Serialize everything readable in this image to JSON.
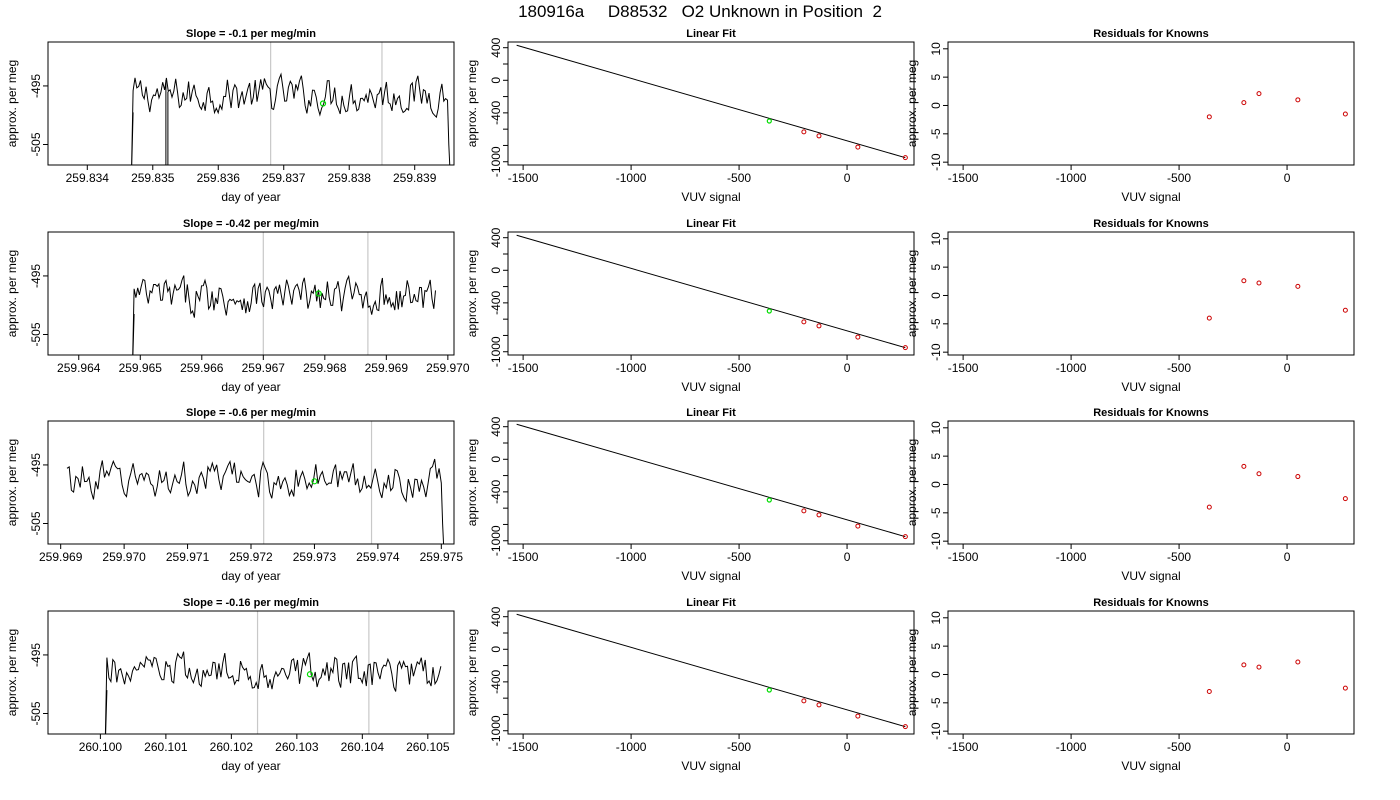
{
  "page_title": "180916a     D88532   O2 Unknown in Position  2",
  "colors": {
    "series": "#000000",
    "marker_unknown": "#00dd00",
    "marker_known": "#cc0000",
    "vline": "#c8c8c8"
  },
  "chart_data": [
    {
      "id": "r1c1",
      "type": "line",
      "title": "Slope =  -0.1  per meg/min",
      "xlabel": "day of year",
      "ylabel": "approx. per meg",
      "xlim": [
        259.8334,
        259.8396
      ],
      "ylim": [
        -508.5,
        -487.5
      ],
      "xticks": [
        259.834,
        259.835,
        259.836,
        259.837,
        259.838,
        259.839
      ],
      "xtick_labels": [
        "259.834",
        "259.835",
        "259.836",
        "259.837",
        "259.838",
        "259.839"
      ],
      "yticks": [
        -505,
        -495
      ],
      "ytick_labels": [
        "-505",
        "-495"
      ],
      "vlines": [
        259.8368,
        259.8385
      ],
      "trace_start": 259.8347,
      "trace_end": 259.8395,
      "trace_level": -496.5,
      "start_drop": true,
      "end_drop": true,
      "dip_at": 259.8352,
      "marker": {
        "x": 259.8376,
        "y": -498.0
      }
    },
    {
      "id": "r1c2",
      "type": "scatter",
      "title": "Linear Fit",
      "xlabel": "VUV signal",
      "ylabel": "approx. per meg",
      "xlim": [
        -1570,
        310
      ],
      "ylim": [
        -1040,
        470
      ],
      "xticks": [
        -1500,
        -1000,
        -500,
        0
      ],
      "xtick_labels": [
        "-1500",
        "-1000",
        "-500",
        "0"
      ],
      "yticks": [
        -1000,
        -800,
        -600,
        -400,
        -200,
        0,
        200,
        400
      ],
      "ytick_labels": [
        "-1000",
        "",
        "",
        "-400",
        "",
        "0",
        "",
        "400"
      ],
      "line": {
        "x": [
          -1530,
          270
        ],
        "y": [
          430,
          -950
        ]
      },
      "knowns": {
        "x": [
          -200,
          -130,
          50,
          270
        ],
        "y": [
          -633,
          -683,
          -820,
          -950
        ]
      },
      "unknown": {
        "x": [
          -360
        ],
        "y": [
          -500
        ]
      }
    },
    {
      "id": "r1c3",
      "type": "scatter",
      "title": "Residuals for Knowns",
      "xlabel": "VUV signal",
      "ylabel": "approx. per meg",
      "xlim": [
        -1570,
        310
      ],
      "ylim": [
        -10.5,
        11.2
      ],
      "xticks": [
        -1500,
        -1000,
        -500,
        0
      ],
      "xtick_labels": [
        "-1500",
        "-1000",
        "-500",
        "0"
      ],
      "yticks": [
        -10,
        -5,
        0,
        5,
        10
      ],
      "ytick_labels": [
        "-10",
        "-5",
        "0",
        "5",
        "10"
      ],
      "knowns": {
        "x": [
          -360,
          -200,
          -130,
          50,
          270
        ],
        "y": [
          -2.0,
          0.5,
          2.1,
          1.0,
          -1.5
        ]
      }
    },
    {
      "id": "r2c1",
      "type": "line",
      "title": "Slope =  -0.42  per meg/min",
      "xlabel": "day of year",
      "ylabel": "approx. per meg",
      "xlim": [
        259.9635,
        259.9701
      ],
      "ylim": [
        -508.5,
        -487.5
      ],
      "xticks": [
        259.964,
        259.965,
        259.966,
        259.967,
        259.968,
        259.969,
        259.97
      ],
      "xtick_labels": [
        "259.964",
        "259.965",
        "259.966",
        "259.967",
        "259.968",
        "259.969",
        "259.970"
      ],
      "yticks": [
        -505,
        -495
      ],
      "ytick_labels": [
        "-505",
        "-495"
      ],
      "vlines": [
        259.967,
        259.9687
      ],
      "trace_start": 259.9649,
      "trace_end": 259.9698,
      "trace_level": -498.5,
      "start_drop": true,
      "end_drop": false,
      "dip_at": null,
      "marker": {
        "x": 259.9679,
        "y": -498.0
      }
    },
    {
      "id": "r2c2",
      "type": "scatter",
      "title": "Linear Fit",
      "xlabel": "VUV signal",
      "ylabel": "approx. per meg",
      "xlim": [
        -1570,
        310
      ],
      "ylim": [
        -1040,
        470
      ],
      "xticks": [
        -1500,
        -1000,
        -500,
        0
      ],
      "xtick_labels": [
        "-1500",
        "-1000",
        "-500",
        "0"
      ],
      "yticks": [
        -1000,
        -800,
        -600,
        -400,
        -200,
        0,
        200,
        400
      ],
      "ytick_labels": [
        "-1000",
        "",
        "",
        "-400",
        "",
        "0",
        "",
        "400"
      ],
      "line": {
        "x": [
          -1530,
          270
        ],
        "y": [
          430,
          -950
        ]
      },
      "knowns": {
        "x": [
          -200,
          -130,
          50,
          270
        ],
        "y": [
          -633,
          -683,
          -820,
          -950
        ]
      },
      "unknown": {
        "x": [
          -360
        ],
        "y": [
          -500
        ]
      }
    },
    {
      "id": "r2c3",
      "type": "scatter",
      "title": "Residuals for Knowns",
      "xlabel": "VUV signal",
      "ylabel": "approx. per meg",
      "xlim": [
        -1570,
        310
      ],
      "ylim": [
        -10.5,
        11.2
      ],
      "xticks": [
        -1500,
        -1000,
        -500,
        0
      ],
      "xtick_labels": [
        "-1500",
        "-1000",
        "-500",
        "0"
      ],
      "yticks": [
        -10,
        -5,
        0,
        5,
        10
      ],
      "ytick_labels": [
        "-10",
        "-5",
        "0",
        "5",
        "10"
      ],
      "knowns": {
        "x": [
          -360,
          -200,
          -130,
          50,
          270
        ],
        "y": [
          -4.0,
          2.6,
          2.2,
          1.6,
          -2.6
        ]
      }
    },
    {
      "id": "r3c1",
      "type": "line",
      "title": "Slope =  -0.6  per meg/min",
      "xlabel": "day of year",
      "ylabel": "approx. per meg",
      "xlim": [
        259.9688,
        259.9752
      ],
      "ylim": [
        -508.5,
        -487.5
      ],
      "xticks": [
        259.969,
        259.97,
        259.971,
        259.972,
        259.973,
        259.974,
        259.975
      ],
      "xtick_labels": [
        "259.969",
        "259.970",
        "259.971",
        "259.972",
        "259.973",
        "259.974",
        "259.975"
      ],
      "yticks": [
        -505,
        -495
      ],
      "ytick_labels": [
        "-505",
        "-495"
      ],
      "vlines": [
        259.9722,
        259.9739
      ],
      "trace_start": 259.9691,
      "trace_end": 259.975,
      "trace_level": -497.5,
      "start_drop": false,
      "end_drop": true,
      "dip_at": null,
      "marker": {
        "x": 259.973,
        "y": -497.8
      }
    },
    {
      "id": "r3c2",
      "type": "scatter",
      "title": "Linear Fit",
      "xlabel": "VUV signal",
      "ylabel": "approx. per meg",
      "xlim": [
        -1570,
        310
      ],
      "ylim": [
        -1040,
        470
      ],
      "xticks": [
        -1500,
        -1000,
        -500,
        0
      ],
      "xtick_labels": [
        "-1500",
        "-1000",
        "-500",
        "0"
      ],
      "yticks": [
        -1000,
        -800,
        -600,
        -400,
        -200,
        0,
        200,
        400
      ],
      "ytick_labels": [
        "-1000",
        "",
        "",
        "-400",
        "",
        "0",
        "",
        "400"
      ],
      "line": {
        "x": [
          -1530,
          270
        ],
        "y": [
          430,
          -950
        ]
      },
      "knowns": {
        "x": [
          -200,
          -130,
          50,
          270
        ],
        "y": [
          -633,
          -683,
          -820,
          -950
        ]
      },
      "unknown": {
        "x": [
          -360
        ],
        "y": [
          -500
        ]
      }
    },
    {
      "id": "r3c3",
      "type": "scatter",
      "title": "Residuals for Knowns",
      "xlabel": "VUV signal",
      "ylabel": "approx. per meg",
      "xlim": [
        -1570,
        310
      ],
      "ylim": [
        -10.5,
        11.2
      ],
      "xticks": [
        -1500,
        -1000,
        -500,
        0
      ],
      "xtick_labels": [
        "-1500",
        "-1000",
        "-500",
        "0"
      ],
      "yticks": [
        -10,
        -5,
        0,
        5,
        10
      ],
      "ytick_labels": [
        "-10",
        "-5",
        "0",
        "5",
        "10"
      ],
      "knowns": {
        "x": [
          -360,
          -200,
          -130,
          50,
          270
        ],
        "y": [
          -4.0,
          3.2,
          1.9,
          1.4,
          -2.5
        ]
      }
    },
    {
      "id": "r4c1",
      "type": "line",
      "title": "Slope =  -0.16  per meg/min",
      "xlabel": "day of year",
      "ylabel": "approx. per meg",
      "xlim": [
        260.0992,
        260.1054
      ],
      "ylim": [
        -508.5,
        -487.5
      ],
      "xticks": [
        260.1,
        260.101,
        260.102,
        260.103,
        260.104,
        260.105
      ],
      "xtick_labels": [
        "260.100",
        "260.101",
        "260.102",
        "260.103",
        "260.104",
        "260.105"
      ],
      "yticks": [
        -505,
        -495
      ],
      "ytick_labels": [
        "-505",
        "-495"
      ],
      "vlines": [
        260.1024,
        260.1041
      ],
      "trace_start": 260.1001,
      "trace_end": 260.1052,
      "trace_level": -498.0,
      "start_drop": true,
      "end_drop": false,
      "dip_at": null,
      "marker": {
        "x": 260.1032,
        "y": -498.3
      }
    },
    {
      "id": "r4c2",
      "type": "scatter",
      "title": "Linear Fit",
      "xlabel": "VUV signal",
      "ylabel": "approx. per meg",
      "xlim": [
        -1570,
        310
      ],
      "ylim": [
        -1040,
        470
      ],
      "xticks": [
        -1500,
        -1000,
        -500,
        0
      ],
      "xtick_labels": [
        "-1500",
        "-1000",
        "-500",
        "0"
      ],
      "yticks": [
        -1000,
        -800,
        -600,
        -400,
        -200,
        0,
        200,
        400
      ],
      "ytick_labels": [
        "-1000",
        "",
        "",
        "-400",
        "",
        "0",
        "",
        "400"
      ],
      "line": {
        "x": [
          -1530,
          270
        ],
        "y": [
          430,
          -950
        ]
      },
      "knowns": {
        "x": [
          -200,
          -130,
          50,
          270
        ],
        "y": [
          -633,
          -683,
          -820,
          -950
        ]
      },
      "unknown": {
        "x": [
          -360
        ],
        "y": [
          -500
        ]
      }
    },
    {
      "id": "r4c3",
      "type": "scatter",
      "title": "Residuals for Knowns",
      "xlabel": "VUV signal",
      "ylabel": "approx. per meg",
      "xlim": [
        -1570,
        310
      ],
      "ylim": [
        -10.5,
        11.2
      ],
      "xticks": [
        -1500,
        -1000,
        -500,
        0
      ],
      "xtick_labels": [
        "-1500",
        "-1000",
        "-500",
        "0"
      ],
      "yticks": [
        -10,
        -5,
        0,
        5,
        10
      ],
      "ytick_labels": [
        "-10",
        "-5",
        "0",
        "5",
        "10"
      ],
      "knowns": {
        "x": [
          -360,
          -200,
          -130,
          50,
          270
        ],
        "y": [
          -3.0,
          1.7,
          1.3,
          2.2,
          -2.4
        ]
      }
    }
  ]
}
